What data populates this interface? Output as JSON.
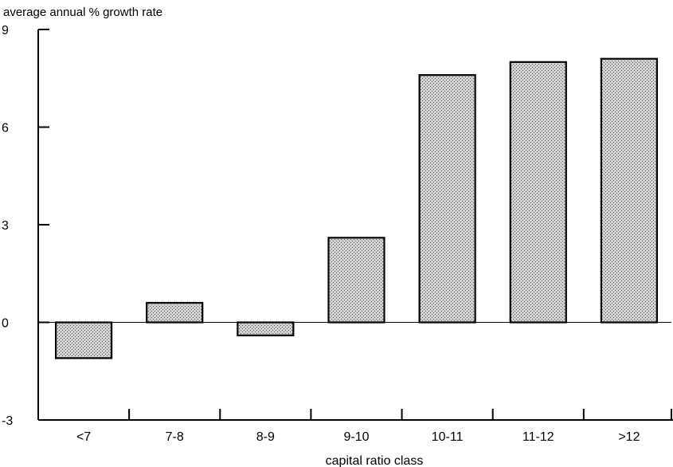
{
  "chart_data": {
    "type": "bar",
    "ylabel": "average annual % growth rate",
    "xlabel": "capital ratio class",
    "categories": [
      "<7",
      "7-8",
      "8-9",
      "9-10",
      "10-11",
      "11-12",
      ">12"
    ],
    "values": [
      -1.1,
      0.6,
      -0.4,
      2.6,
      7.6,
      8.0,
      8.1
    ],
    "ylim": [
      -3,
      9
    ],
    "yticks": [
      -3,
      0,
      3,
      6,
      9
    ],
    "ytick_labels": [
      "-3",
      "0",
      "3",
      "6",
      "9"
    ],
    "grid": false,
    "legend": "none",
    "bar_fill": "#bdbdbd",
    "bar_stroke": "#000000"
  }
}
